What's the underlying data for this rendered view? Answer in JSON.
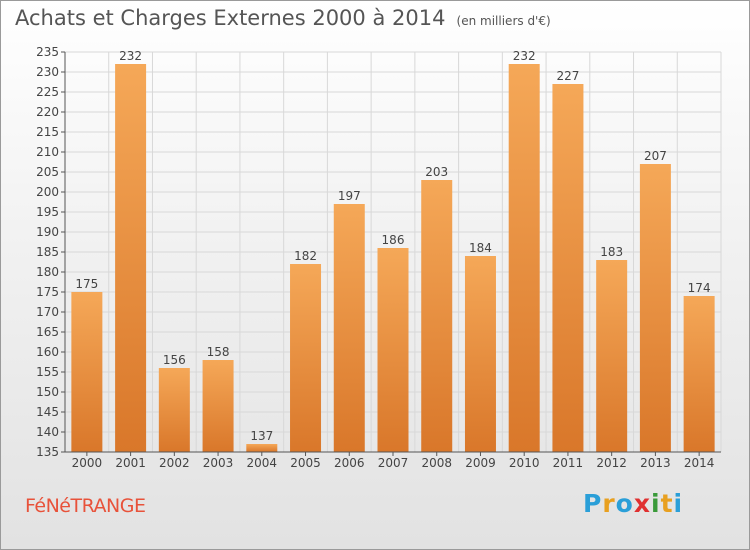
{
  "title": "Achats et Charges Externes 2000 à 2014",
  "unit_note": "(en milliers d'€)",
  "commune": "FéNéTRANGE",
  "logo": {
    "letters": [
      "P",
      "r",
      "o",
      "x",
      "i",
      "t",
      "i"
    ],
    "colors": [
      "#2a9fd8",
      "#e8a020",
      "#2a9fd8",
      "#e03030",
      "#3a9a3a",
      "#e8a020",
      "#2a9fd8"
    ]
  },
  "colors": {
    "bar_light": "#f5a858",
    "bar_dark": "#d9772a",
    "grid": "#d8d8d8",
    "axis": "#555555"
  },
  "chart_data": {
    "type": "bar",
    "title": "Achats et Charges Externes 2000 à 2014",
    "categories": [
      "2000",
      "2001",
      "2002",
      "2003",
      "2004",
      "2005",
      "2006",
      "2007",
      "2008",
      "2009",
      "2010",
      "2011",
      "2012",
      "2013",
      "2014"
    ],
    "values": [
      175,
      232,
      156,
      158,
      137,
      182,
      197,
      186,
      203,
      184,
      232,
      227,
      183,
      207,
      174
    ],
    "ylim": [
      135,
      235
    ],
    "ytick_step": 5,
    "xlabel": "",
    "ylabel": "",
    "grid": true
  }
}
